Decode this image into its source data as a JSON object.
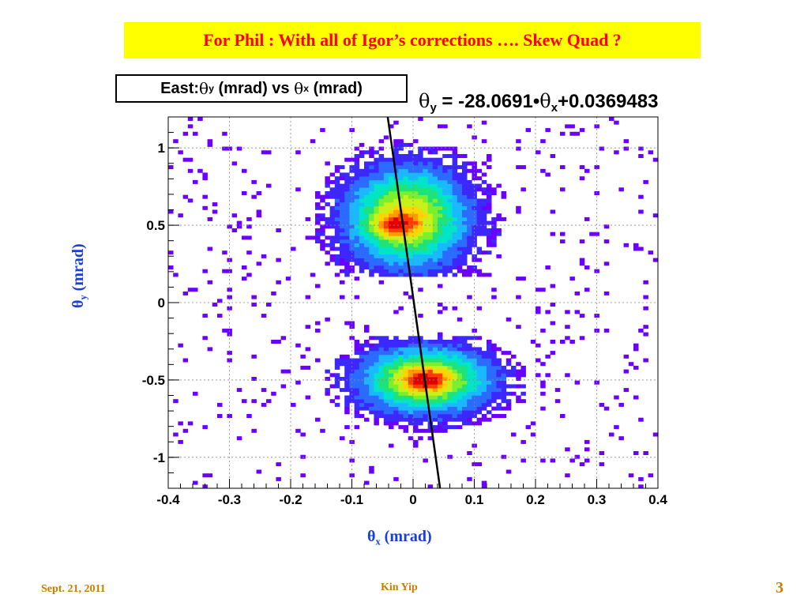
{
  "slide": {
    "title": "For Phil : With all of Igor’s corrections …. Skew Quad ?",
    "footer_date": "Sept. 21, 2011",
    "footer_author": "Kin Yip",
    "page_number": "3",
    "title_bg_color": "#ffff00",
    "title_text_color": "#ff0000",
    "axis_label_color": "#1a3fd6",
    "footer_color": "#cc7a00"
  },
  "histogram_title": {
    "prefix": "East:",
    "sym1": "θ",
    "sub1": "y",
    "mid": " (mrad) vs ",
    "sym2": "θ",
    "sub2": "x",
    "suffix": " (mrad)"
  },
  "fit_label": {
    "sym1": "θ",
    "sub1": "y",
    "mid": " = -28.0691•",
    "sym2": "θ",
    "sub2": "x",
    "suffix": "+0.0369483"
  },
  "axis_labels": {
    "x_sym": "θ",
    "x_sub": "x",
    "x_rest": " (mrad)",
    "y_sym": "θ",
    "y_sub": "y",
    "y_rest": " (mrad)"
  },
  "chart_data": {
    "type": "heatmap",
    "xlim": [
      -0.4,
      0.4
    ],
    "ylim": [
      -1.2,
      1.2
    ],
    "x_ticks": [
      -0.4,
      -0.3,
      -0.2,
      -0.1,
      0,
      0.1,
      0.2,
      0.3,
      0.4
    ],
    "x_tick_labels": [
      "-0.4",
      "-0.3",
      "-0.2",
      "-0.1",
      "0",
      "0.1",
      "0.2",
      "0.3",
      "0.4"
    ],
    "y_ticks": [
      -1,
      -0.5,
      0,
      0.5,
      1
    ],
    "y_tick_labels": [
      "-1",
      "-0.5",
      "0",
      "0.5",
      "1"
    ],
    "grid": true,
    "clusters": [
      {
        "center_x": -0.01,
        "center_y": 0.55,
        "sigma_x": 0.055,
        "sigma_y": 0.18,
        "y_min": 0.18,
        "peak_x": -0.03,
        "peak_y": 0.5
      },
      {
        "center_x": 0.02,
        "center_y": -0.5,
        "sigma_x": 0.06,
        "sigma_y": 0.12,
        "y_max": -0.22,
        "peak_x": 0.02,
        "peak_y": -0.5
      }
    ],
    "colormap": [
      "#6a00ff",
      "#3c28ff",
      "#2b6bff",
      "#19b8ff",
      "#00e5c8",
      "#1fe37a",
      "#7aef2e",
      "#c8f01a",
      "#ffd400",
      "#ff9a00",
      "#ff3c00",
      "#e00000"
    ],
    "fit_line": {
      "slope": -28.0691,
      "intercept": 0.0369483,
      "color": "#000000"
    }
  }
}
